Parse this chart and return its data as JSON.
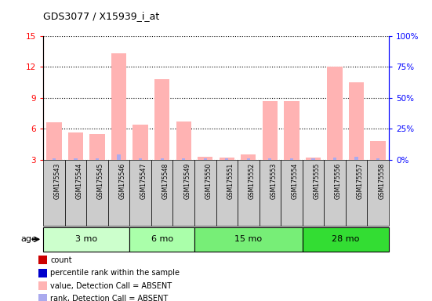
{
  "title": "GDS3077 / X15939_i_at",
  "samples": [
    "GSM175543",
    "GSM175544",
    "GSM175545",
    "GSM175546",
    "GSM175547",
    "GSM175548",
    "GSM175549",
    "GSM175550",
    "GSM175551",
    "GSM175552",
    "GSM175553",
    "GSM175554",
    "GSM175555",
    "GSM175556",
    "GSM175557",
    "GSM175558"
  ],
  "bar_values": [
    6.6,
    5.6,
    5.5,
    13.3,
    6.4,
    10.8,
    6.7,
    3.3,
    3.2,
    3.5,
    8.7,
    8.7,
    3.2,
    12.0,
    10.5,
    4.8
  ],
  "blue_bar_values": [
    3.1,
    3.1,
    3.1,
    3.5,
    3.1,
    3.1,
    3.1,
    3.1,
    3.1,
    3.1,
    3.1,
    3.1,
    3.1,
    3.2,
    3.3,
    3.1
  ],
  "age_groups": [
    {
      "label": "3 mo",
      "start": 0,
      "end": 4,
      "color": "#ccffcc"
    },
    {
      "label": "6 mo",
      "start": 4,
      "end": 7,
      "color": "#aaffaa"
    },
    {
      "label": "15 mo",
      "start": 7,
      "end": 12,
      "color": "#77ee77"
    },
    {
      "label": "28 mo",
      "start": 12,
      "end": 16,
      "color": "#33dd33"
    }
  ],
  "bar_color": "#ffb3b3",
  "blue_bar_color": "#aaaaee",
  "ylim_left": [
    3,
    15
  ],
  "ylim_right": [
    0,
    100
  ],
  "yticks_left": [
    3,
    6,
    9,
    12,
    15
  ],
  "ytick_labels_right": [
    "0%",
    "25%",
    "50%",
    "75%",
    "100%"
  ],
  "yticks_right": [
    0,
    25,
    50,
    75,
    100
  ],
  "plot_bg": "#ffffff",
  "gray_cell_color": "#cccccc",
  "legend": [
    {
      "color": "#cc0000",
      "label": "count"
    },
    {
      "color": "#0000cc",
      "label": "percentile rank within the sample"
    },
    {
      "color": "#ffb3b3",
      "label": "value, Detection Call = ABSENT"
    },
    {
      "color": "#aaaaee",
      "label": "rank, Detection Call = ABSENT"
    }
  ]
}
